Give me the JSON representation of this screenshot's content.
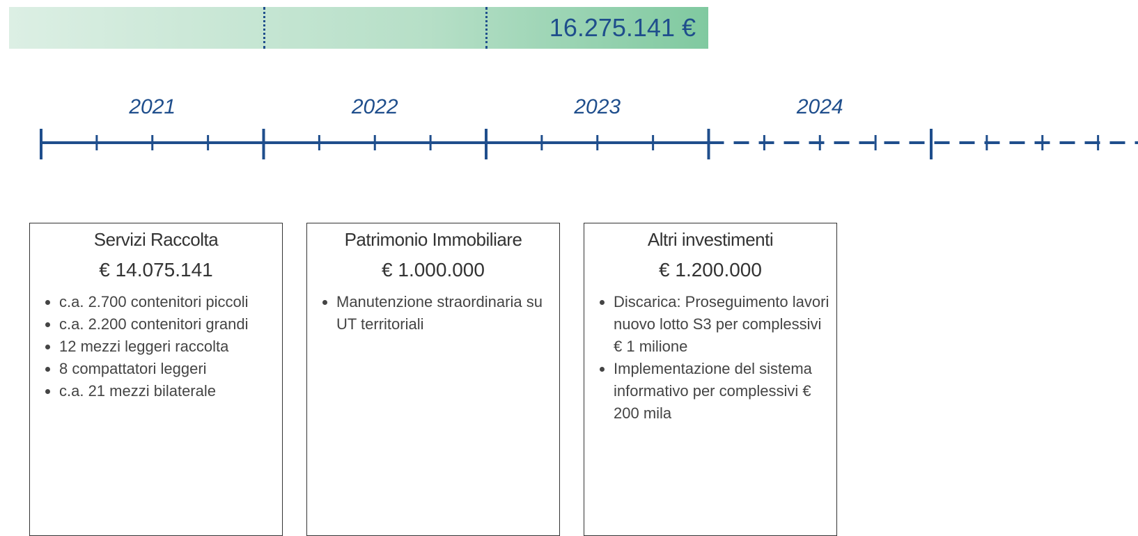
{
  "total": "16.275.141 €",
  "timeline": {
    "years": [
      "2021",
      "2022",
      "2023",
      "2024"
    ]
  },
  "boxes": [
    {
      "title": "Servizi Raccolta",
      "amount": "€ 14.075.141",
      "bullets": [
        "c.a. 2.700 contenitori piccoli",
        "c.a.  2.200 contenitori grandi",
        "12 mezzi leggeri raccolta",
        "8 compattatori leggeri",
        "c.a. 21 mezzi bilaterale"
      ]
    },
    {
      "title": "Patrimonio Immobiliare",
      "amount": "€ 1.000.000",
      "bullets": [
        "Manutenzione straordinaria su UT territoriali"
      ]
    },
    {
      "title": "Altri investimenti",
      "amount": "€ 1.200.000",
      "bullets": [
        "Discarica: Proseguimento lavori nuovo lotto S3 per complessivi € 1 milione",
        "Implementazione del sistema informativo per complessivi  € 200 mila"
      ]
    }
  ]
}
